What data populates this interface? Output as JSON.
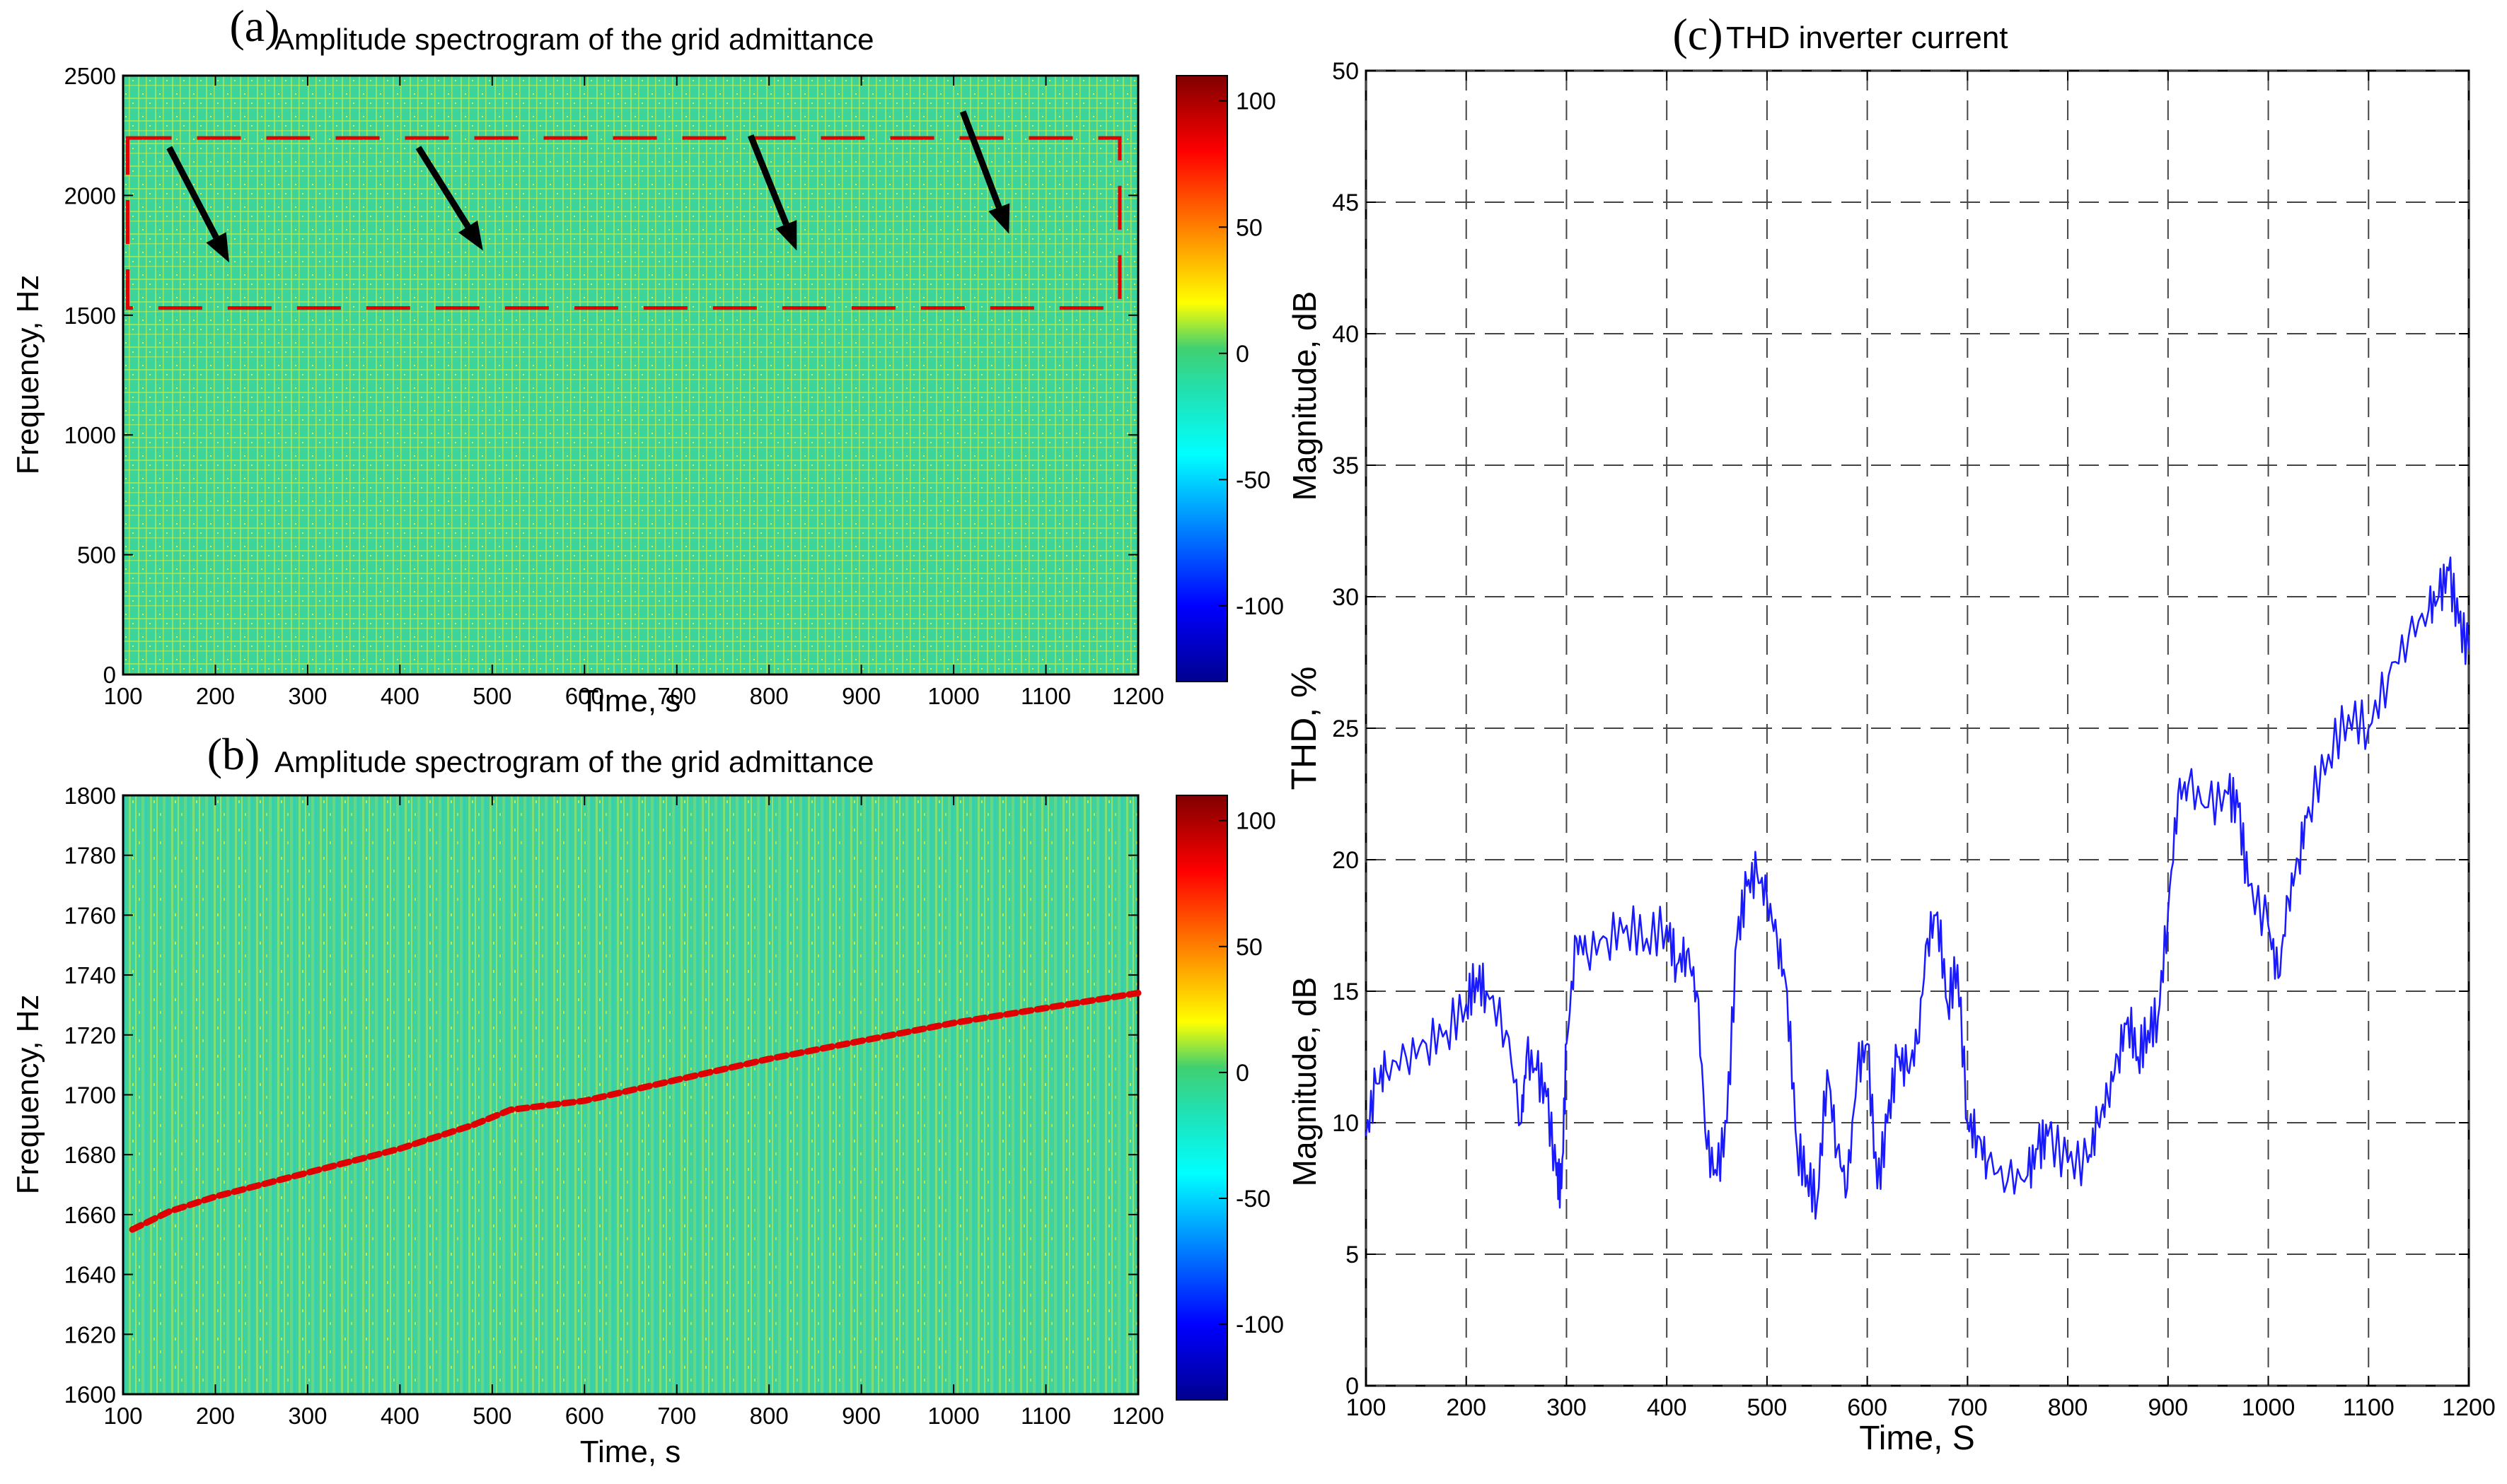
{
  "chart_data": [
    {
      "panel": "(a)",
      "type": "heatmap",
      "title": "Amplitude spectrogram of the grid admittance",
      "xlabel": "Time, s",
      "ylabel": "Frequency, Hz",
      "xlim": [
        100,
        1200
      ],
      "ylim": [
        0,
        2500
      ],
      "xticks": [
        100,
        200,
        300,
        400,
        500,
        600,
        700,
        800,
        900,
        1000,
        1100,
        1200
      ],
      "yticks": [
        0,
        500,
        1000,
        1500,
        2000,
        2500
      ],
      "colorbar": {
        "label": "",
        "ticks": [
          100,
          50,
          0,
          -50,
          -100
        ],
        "range": [
          -130,
          110
        ]
      },
      "highlight_box": {
        "time": [
          105,
          1180
        ],
        "freq": [
          1530,
          2240
        ],
        "color": "#e00000"
      },
      "arrows": [
        {
          "from": [
            150,
            2200
          ],
          "to": [
            215,
            1720
          ]
        },
        {
          "from": [
            420,
            2200
          ],
          "to": [
            490,
            1770
          ]
        },
        {
          "from": [
            780,
            2250
          ],
          "to": [
            830,
            1770
          ]
        },
        {
          "from": [
            1010,
            2350
          ],
          "to": [
            1060,
            1840
          ]
        }
      ]
    },
    {
      "panel": "(b)",
      "type": "heatmap",
      "title": "Amplitude spectrogram of the grid admittance",
      "xlabel": "Time, s",
      "ylabel": "Frequency, Hz",
      "xlim": [
        100,
        1200
      ],
      "ylim": [
        1600,
        1800
      ],
      "xticks": [
        100,
        200,
        300,
        400,
        500,
        600,
        700,
        800,
        900,
        1000,
        1100,
        1200
      ],
      "yticks": [
        1600,
        1620,
        1640,
        1660,
        1680,
        1700,
        1720,
        1740,
        1760,
        1780,
        1800
      ],
      "colorbar": {
        "label": "",
        "ticks": [
          100,
          50,
          0,
          -50,
          -100
        ],
        "range": [
          -130,
          110
        ]
      },
      "trend_line": {
        "x": [
          110,
          150,
          200,
          250,
          300,
          350,
          400,
          440,
          480,
          520,
          600,
          700,
          800,
          900,
          1000,
          1100,
          1200
        ],
        "y": [
          1655,
          1661,
          1666,
          1670,
          1674,
          1678,
          1682,
          1686,
          1690,
          1695,
          1698,
          1705,
          1712,
          1718,
          1724,
          1729,
          1734
        ],
        "color": "#e00000"
      }
    },
    {
      "panel": "(c)",
      "type": "line",
      "title": "THD inverter current",
      "xlabel": "Time, S",
      "ylabel_upper": "Magnitude, dB",
      "ylabel_middle": "THD, %",
      "ylabel_lower": "Magnitude, dB",
      "xlim": [
        100,
        1200
      ],
      "ylim": [
        0,
        50
      ],
      "xticks": [
        100,
        200,
        300,
        400,
        500,
        600,
        700,
        800,
        900,
        1000,
        1100,
        1200
      ],
      "yticks": [
        0,
        5,
        10,
        15,
        20,
        25,
        30,
        35,
        40,
        45,
        50
      ],
      "grid": true,
      "series": [
        {
          "name": "THD inverter current",
          "color": "#1a1aff",
          "x": [
            100,
            110,
            120,
            140,
            160,
            180,
            200,
            210,
            220,
            240,
            255,
            260,
            270,
            280,
            290,
            295,
            300,
            310,
            320,
            340,
            360,
            380,
            400,
            410,
            420,
            430,
            440,
            450,
            460,
            470,
            480,
            490,
            500,
            510,
            520,
            530,
            540,
            550,
            560,
            570,
            580,
            590,
            600,
            610,
            620,
            630,
            640,
            650,
            660,
            670,
            680,
            690,
            700,
            710,
            720,
            740,
            760,
            770,
            780,
            800,
            820,
            830,
            840,
            850,
            860,
            870,
            880,
            890,
            900,
            910,
            920,
            940,
            960,
            970,
            980,
            1000,
            1010,
            1020,
            1030,
            1040,
            1060,
            1080,
            1100,
            1120,
            1140,
            1160,
            1170,
            1180,
            1190,
            1200
          ],
          "y": [
            9.5,
            11.5,
            12,
            12.5,
            13,
            13.5,
            14.5,
            15.5,
            15,
            13.5,
            10,
            12.5,
            12,
            11,
            8,
            7.5,
            13,
            17,
            16.5,
            17,
            17.5,
            17,
            17.5,
            16,
            16.5,
            15,
            9,
            8,
            10,
            17,
            19,
            19.5,
            18.5,
            17,
            15,
            9,
            8,
            7,
            12,
            9,
            7.5,
            12,
            13,
            7.5,
            10,
            12.5,
            12,
            13,
            17,
            18,
            14.5,
            16,
            10,
            9.5,
            8.5,
            7.8,
            8,
            9,
            9.5,
            8.5,
            8.5,
            10,
            11,
            12.5,
            14,
            12.5,
            13.5,
            14,
            18,
            22.5,
            22.8,
            22,
            22.5,
            22,
            19,
            17.5,
            15.5,
            18.5,
            20,
            22,
            24,
            25.5,
            25,
            27,
            28.5,
            29.5,
            30,
            31,
            29,
            28
          ]
        }
      ]
    }
  ]
}
